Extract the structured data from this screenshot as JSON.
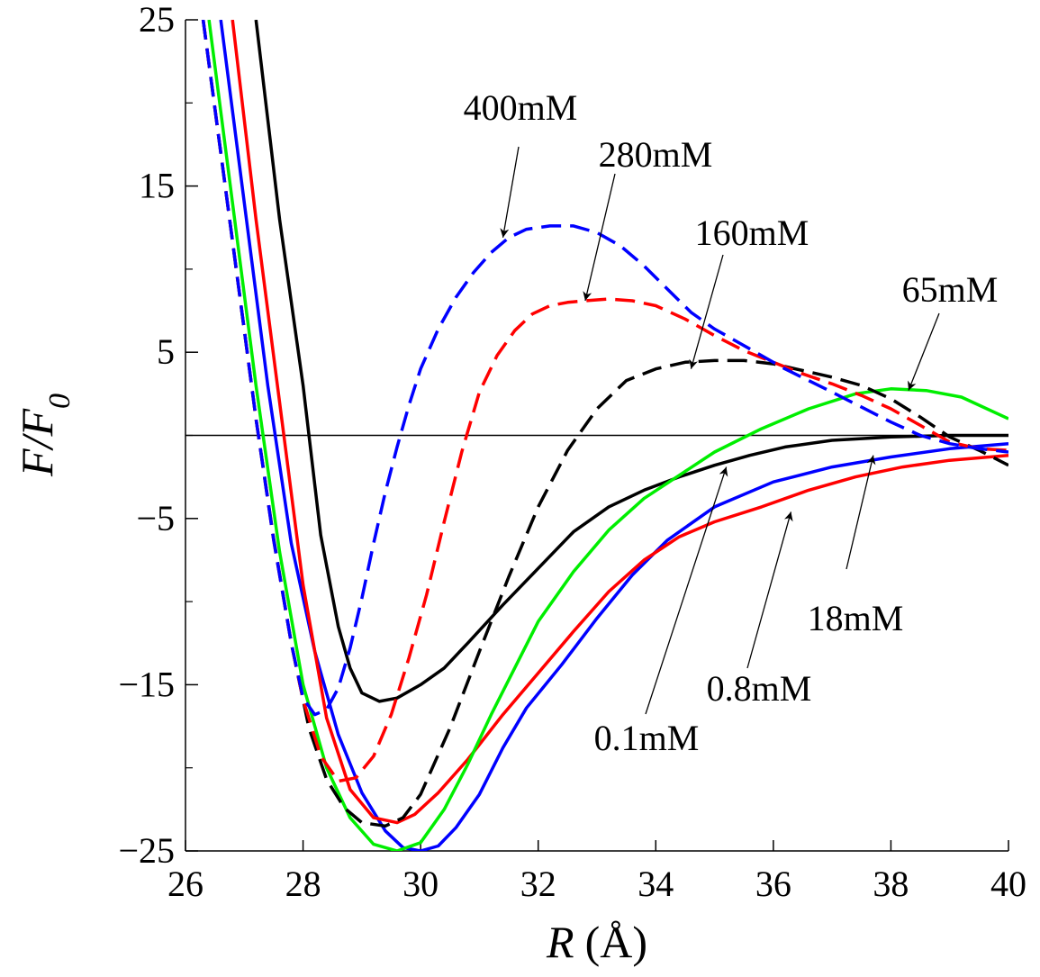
{
  "chart_data": {
    "type": "line",
    "xlabel": "R",
    "xlabel_unit": "(Å)",
    "ylabel": "F/F",
    "ylabel_sub": "0",
    "xlim": [
      26,
      40
    ],
    "ylim": [
      -25,
      25
    ],
    "xticks": [
      26,
      28,
      30,
      32,
      34,
      36,
      38,
      40
    ],
    "xtick_labels": [
      "26",
      "28",
      "30",
      "32",
      "34",
      "36",
      "38",
      "40"
    ],
    "yticks": [
      25,
      15,
      5,
      -5,
      -15,
      -25
    ],
    "ytick_labels": [
      "25",
      "15",
      "5",
      "−5",
      "−15",
      "−25"
    ],
    "yminor": [
      20,
      10,
      0,
      -10,
      -20
    ],
    "reference_line_y": 0,
    "grid": false,
    "series": [
      {
        "label": "0.1mM",
        "color": "#000000",
        "dash": "solid",
        "x": [
          27.2,
          27.6,
          28.0,
          28.3,
          28.6,
          28.8,
          29.0,
          29.3,
          29.6,
          30.0,
          30.4,
          30.8,
          31.4,
          32.0,
          32.6,
          33.2,
          33.8,
          34.4,
          35.0,
          35.6,
          36.2,
          37.0,
          38.0,
          39.0,
          40.0
        ],
        "y": [
          25,
          13,
          3,
          -6,
          -11.5,
          -14,
          -15.5,
          -16,
          -15.8,
          -15,
          -14,
          -12.5,
          -10.2,
          -8,
          -5.8,
          -4.3,
          -3.3,
          -2.5,
          -1.8,
          -1.2,
          -0.7,
          -0.3,
          -0.1,
          0,
          0
        ]
      },
      {
        "label": "0.8mM",
        "color": "#0000ff",
        "dash": "solid",
        "x": [
          26.6,
          27.0,
          27.4,
          27.8,
          28.2,
          28.6,
          29.0,
          29.4,
          29.7,
          30.0,
          30.3,
          30.6,
          31.0,
          31.4,
          31.8,
          32.4,
          33.0,
          33.6,
          34.2,
          35.0,
          36.0,
          37.0,
          38.0,
          39.0,
          40.0
        ],
        "y": [
          25,
          14,
          3,
          -6.5,
          -13,
          -18,
          -21.5,
          -23.8,
          -24.8,
          -25,
          -24.7,
          -23.6,
          -21.6,
          -18.8,
          -16.4,
          -13.8,
          -11,
          -8.4,
          -6.3,
          -4.3,
          -2.8,
          -1.9,
          -1.3,
          -0.8,
          -0.5
        ]
      },
      {
        "label": "18mM",
        "color": "#ff0000",
        "dash": "solid",
        "x": [
          26.8,
          27.2,
          27.6,
          28.0,
          28.4,
          28.8,
          29.2,
          29.6,
          29.9,
          30.3,
          30.8,
          31.4,
          32.0,
          32.6,
          33.2,
          33.8,
          34.4,
          35.0,
          35.8,
          36.6,
          37.4,
          38.2,
          39.0,
          40.0
        ],
        "y": [
          25,
          13,
          2,
          -9,
          -17,
          -21.3,
          -23,
          -23.3,
          -22.8,
          -21.5,
          -19.5,
          -16.8,
          -14.3,
          -11.8,
          -9.4,
          -7.5,
          -6.1,
          -5.2,
          -4.3,
          -3.3,
          -2.5,
          -1.9,
          -1.5,
          -1.2
        ]
      },
      {
        "label": "65mM",
        "color": "#00ee00",
        "dash": "solid",
        "x": [
          26.4,
          26.8,
          27.2,
          27.6,
          28.0,
          28.4,
          28.8,
          29.2,
          29.6,
          30.0,
          30.4,
          30.8,
          31.2,
          31.6,
          32.0,
          32.6,
          33.2,
          33.8,
          34.4,
          35.0,
          35.8,
          36.6,
          37.4,
          38.0,
          38.6,
          39.2,
          40.0
        ],
        "y": [
          25,
          14,
          3,
          -7,
          -15,
          -20,
          -23,
          -24.6,
          -25,
          -24.5,
          -22.5,
          -19.8,
          -16.8,
          -14,
          -11.2,
          -8.2,
          -5.7,
          -3.8,
          -2.4,
          -1,
          0.4,
          1.6,
          2.5,
          2.8,
          2.7,
          2.3,
          1
        ]
      },
      {
        "label": "160mM",
        "color": "#000000",
        "dash": "dashed",
        "x": [
          26.3,
          26.6,
          26.9,
          27.2,
          27.5,
          27.8,
          28.1,
          28.4,
          28.7,
          29.0,
          29.4,
          29.7,
          30.0,
          30.5,
          31.0,
          31.5,
          32.0,
          32.5,
          33.0,
          33.5,
          34.0,
          34.5,
          35.0,
          35.5,
          36.0,
          36.5,
          37.0,
          37.5,
          38.0,
          38.5,
          39.0,
          39.5,
          40.0
        ],
        "y": [
          25,
          17,
          9,
          1,
          -6.2,
          -12.5,
          -17.6,
          -20.7,
          -22.4,
          -23.3,
          -23.5,
          -23,
          -21.6,
          -17.6,
          -13,
          -8.5,
          -4.3,
          -0.9,
          1.6,
          3.3,
          4,
          4.4,
          4.5,
          4.5,
          4.3,
          3.9,
          3.5,
          3,
          2.2,
          1.1,
          -0.1,
          -0.9,
          -1.8
        ]
      },
      {
        "label": "280mM",
        "color": "#ff0000",
        "dash": "dashed",
        "x": [
          26.3,
          26.6,
          26.9,
          27.2,
          27.5,
          27.8,
          28.0,
          28.3,
          28.6,
          28.9,
          29.2,
          29.5,
          29.8,
          30.1,
          30.4,
          30.7,
          31.0,
          31.3,
          31.6,
          31.9,
          32.2,
          32.5,
          32.8,
          33.2,
          33.6,
          34.0,
          34.5,
          35.0,
          35.5,
          36.0,
          36.5,
          37.0,
          37.5,
          38.0,
          38.5,
          39.0,
          39.5,
          40.0
        ],
        "y": [
          25,
          17,
          9,
          1,
          -6.3,
          -12.5,
          -15.9,
          -19.3,
          -20.8,
          -20.6,
          -19.3,
          -16.8,
          -13.4,
          -9.6,
          -5.2,
          -1,
          2.6,
          4.8,
          6.3,
          7.3,
          7.8,
          8,
          8.1,
          8.2,
          8.1,
          7.8,
          7,
          6,
          5.1,
          4.4,
          3.7,
          3.1,
          2.4,
          1.6,
          0.6,
          -0.4,
          -0.8,
          -0.9
        ]
      },
      {
        "label": "400mM",
        "color": "#0000ff",
        "dash": "dashed",
        "x": [
          26.3,
          26.6,
          26.9,
          27.2,
          27.5,
          27.8,
          28.0,
          28.2,
          28.4,
          28.6,
          28.8,
          29.0,
          29.2,
          29.4,
          29.6,
          29.8,
          30.0,
          30.3,
          30.6,
          30.9,
          31.2,
          31.5,
          31.8,
          32.2,
          32.6,
          33.0,
          33.4,
          33.8,
          34.2,
          34.6,
          35.0,
          35.4,
          35.8,
          36.2,
          36.6,
          37.0,
          37.5,
          38.0,
          38.5,
          39.0,
          39.5,
          40.0
        ],
        "y": [
          25,
          17,
          9,
          1,
          -6.3,
          -12.5,
          -15.8,
          -16.8,
          -16.5,
          -15.2,
          -12.8,
          -9.8,
          -6.5,
          -3.4,
          -0.7,
          1.8,
          4,
          6.4,
          8.3,
          9.8,
          11,
          11.9,
          12.4,
          12.6,
          12.6,
          12.2,
          11.4,
          10.2,
          8.8,
          7.4,
          6.4,
          5.6,
          4.8,
          4,
          3.3,
          2.6,
          1.7,
          0.8,
          0,
          -0.5,
          -0.8,
          -1
        ]
      }
    ],
    "annotations": [
      {
        "text": "400mM",
        "target": [
          31.4,
          11.9
        ]
      },
      {
        "text": "280mM",
        "target": [
          32.8,
          8.1
        ]
      },
      {
        "text": "160mM",
        "target": [
          34.6,
          4.0
        ]
      },
      {
        "text": "65mM",
        "target": [
          38.3,
          2.7
        ]
      },
      {
        "text": "18mM",
        "target": [
          37.7,
          -1.2
        ]
      },
      {
        "text": "0.8mM",
        "target": [
          36.3,
          -4.6
        ]
      },
      {
        "text": "0.1mM",
        "target": [
          35.2,
          -1.9
        ]
      }
    ]
  }
}
